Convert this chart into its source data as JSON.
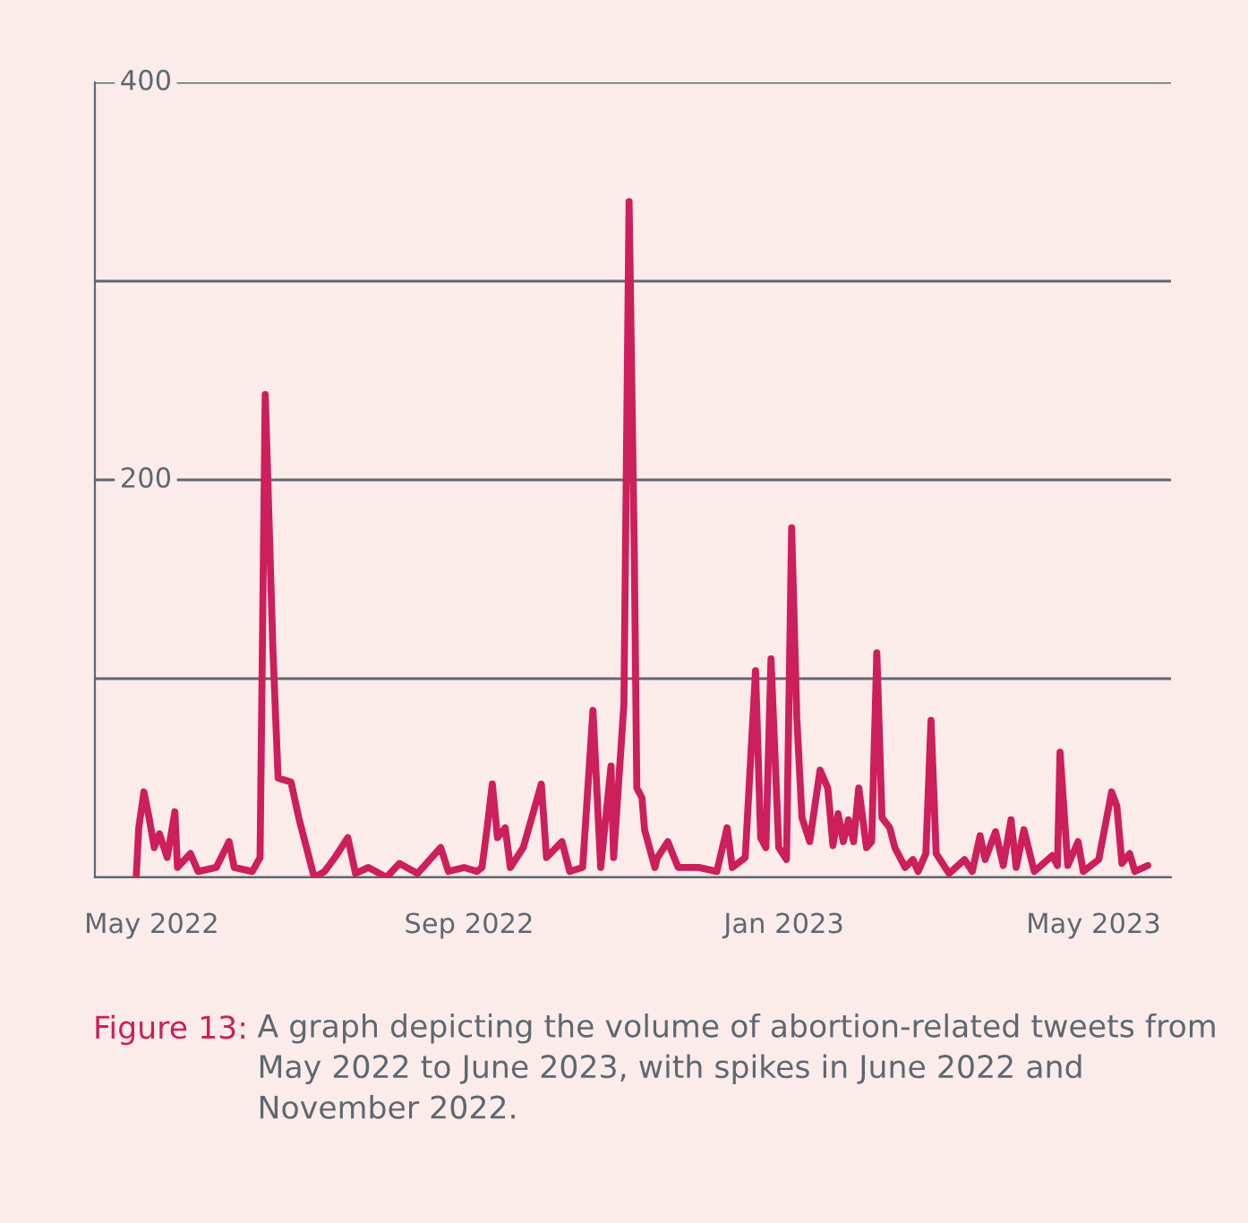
{
  "chart_data": {
    "type": "line",
    "x": [
      "2022-04-25",
      "2022-04-26",
      "2022-04-28",
      "2022-04-30",
      "2022-05-02",
      "2022-05-04",
      "2022-05-07",
      "2022-05-10",
      "2022-05-11",
      "2022-05-16",
      "2022-05-19",
      "2022-05-26",
      "2022-05-31",
      "2022-06-02",
      "2022-06-09",
      "2022-06-12",
      "2022-06-14",
      "2022-06-17",
      "2022-06-19",
      "2022-06-24",
      "2022-06-27",
      "2022-06-30",
      "2022-07-03",
      "2022-07-07",
      "2022-07-11",
      "2022-07-16",
      "2022-07-19",
      "2022-07-24",
      "2022-07-31",
      "2022-08-05",
      "2022-08-12",
      "2022-08-21",
      "2022-08-24",
      "2022-08-30",
      "2022-09-04",
      "2022-09-06",
      "2022-09-08",
      "2022-09-10",
      "2022-09-12",
      "2022-09-15",
      "2022-09-17",
      "2022-09-22",
      "2022-09-29",
      "2022-10-01",
      "2022-10-07",
      "2022-10-10",
      "2022-10-15",
      "2022-10-19",
      "2022-10-22",
      "2022-10-26",
      "2022-10-27",
      "2022-10-31",
      "2022-11-02",
      "2022-11-04",
      "2022-11-05",
      "2022-11-07",
      "2022-11-08",
      "2022-11-12",
      "2022-11-13",
      "2022-11-17",
      "2022-11-21",
      "2022-11-29",
      "2022-12-06",
      "2022-12-10",
      "2022-12-12",
      "2022-12-17",
      "2022-12-21",
      "2022-12-23",
      "2022-12-25",
      "2022-12-27",
      "2022-12-30",
      "2023-01-02",
      "2023-01-04",
      "2023-01-06",
      "2023-01-08",
      "2023-01-11",
      "2023-01-15",
      "2023-01-18",
      "2023-01-20",
      "2023-01-22",
      "2023-01-24",
      "2023-01-26",
      "2023-01-28",
      "2023-01-30",
      "2023-02-02",
      "2023-02-04",
      "2023-02-06",
      "2023-02-08",
      "2023-02-11",
      "2023-02-13",
      "2023-02-17",
      "2023-02-20",
      "2023-02-22",
      "2023-02-25",
      "2023-02-27",
      "2023-03-01",
      "2023-03-06",
      "2023-03-12",
      "2023-03-15",
      "2023-03-18",
      "2023-03-20",
      "2023-03-24",
      "2023-03-27",
      "2023-03-30",
      "2023-04-01",
      "2023-04-04",
      "2023-04-08",
      "2023-04-15",
      "2023-04-17",
      "2023-04-18",
      "2023-04-21",
      "2023-04-25",
      "2023-04-27",
      "2023-05-03",
      "2023-05-08",
      "2023-05-10",
      "2023-05-12",
      "2023-05-15",
      "2023-05-17",
      "2023-05-22"
    ],
    "series": [
      {
        "color": "#cc1f5c",
        "values": [
          0,
          25,
          43,
          30,
          15,
          22,
          10,
          33,
          5,
          12,
          3,
          5,
          18,
          5,
          3,
          10,
          243,
          114,
          50,
          48,
          30,
          15,
          0,
          3,
          10,
          20,
          2,
          5,
          0,
          7,
          2,
          15,
          3,
          5,
          3,
          5,
          25,
          47,
          20,
          25,
          5,
          15,
          47,
          10,
          18,
          3,
          5,
          84,
          5,
          56,
          10,
          87,
          340,
          165,
          45,
          40,
          24,
          5,
          10,
          18,
          5,
          5,
          3,
          25,
          5,
          10,
          104,
          20,
          15,
          110,
          15,
          9,
          176,
          80,
          30,
          18,
          54,
          45,
          16,
          32,
          18,
          29,
          18,
          45,
          15,
          18,
          113,
          30,
          25,
          15,
          5,
          9,
          3,
          12,
          79,
          12,
          2,
          9,
          3,
          21,
          9,
          23,
          6,
          29,
          5,
          24,
          3,
          11,
          6,
          63,
          6,
          18,
          3,
          9,
          43,
          36,
          7,
          12,
          3,
          6
        ]
      }
    ],
    "xlim": [
      "2022-04-09",
      "2023-05-31"
    ],
    "xticks": [
      {
        "value": "2022-05-01",
        "label": "May 2022"
      },
      {
        "value": "2022-09-01",
        "label": "Sep 2022"
      },
      {
        "value": "2023-01-01",
        "label": "Jan 2023"
      },
      {
        "value": "2023-05-01",
        "label": "May 2023"
      }
    ],
    "ylim": [
      0,
      400
    ],
    "yticks": [
      {
        "value": 0,
        "label": null
      },
      {
        "value": 100,
        "label": null
      },
      200,
      {
        "value": 300,
        "label": null
      },
      400
    ],
    "grid": "y",
    "marker": "none",
    "line_style": "solid",
    "annotations": [
      "Figure 13:",
      "A graph depicting the volume of abortion-related tweets from May 2022 to June 2023, with spikes in June 2022 and November 2022."
    ]
  }
}
